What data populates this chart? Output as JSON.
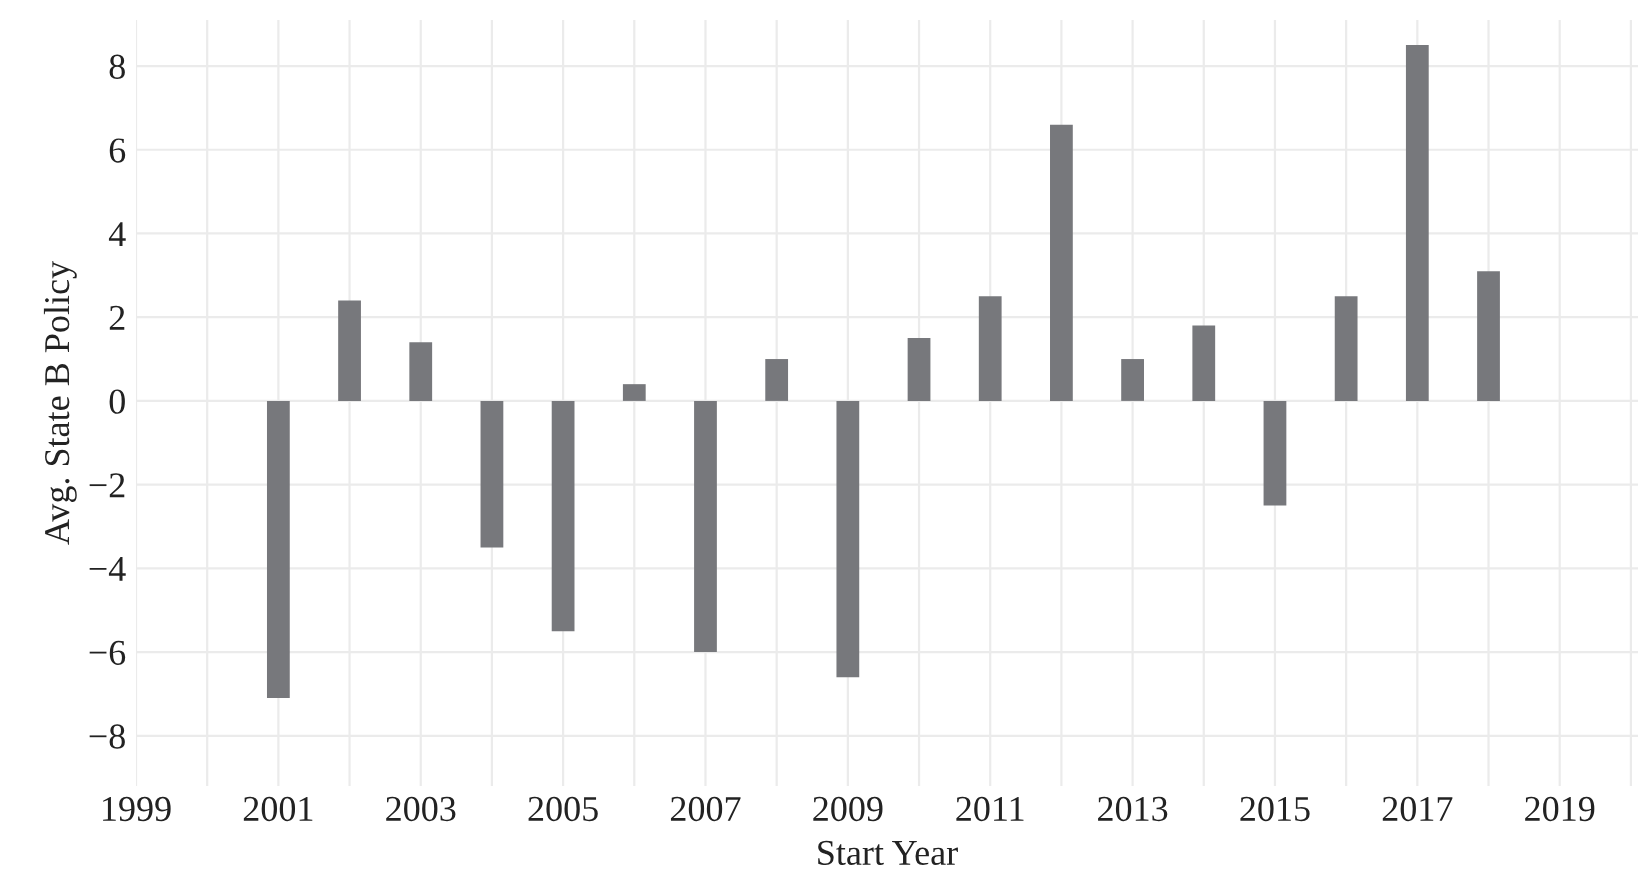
{
  "chart_data": {
    "type": "bar",
    "xlabel": "Start Year",
    "ylabel": "Avg. State B Policy",
    "x": [
      2001,
      2002,
      2003,
      2004,
      2005,
      2006,
      2007,
      2008,
      2009,
      2010,
      2011,
      2012,
      2013,
      2014,
      2015,
      2016,
      2017,
      2018
    ],
    "values": [
      -7.1,
      2.4,
      1.4,
      -3.5,
      -5.5,
      0.4,
      -6.0,
      1.0,
      -6.6,
      1.5,
      2.5,
      6.6,
      1.0,
      1.8,
      -2.5,
      2.5,
      8.5,
      3.1
    ],
    "color": "#77787c",
    "xlim": [
      1999,
      2020.1
    ],
    "xticks": [
      1999,
      {
        "value": 2000,
        "label": null
      },
      2001,
      {
        "value": 2002,
        "label": null
      },
      2003,
      {
        "value": 2004,
        "label": null
      },
      2005,
      {
        "value": 2006,
        "label": null
      },
      2007,
      {
        "value": 2008,
        "label": null
      },
      2009,
      {
        "value": 2010,
        "label": null
      },
      2011,
      {
        "value": 2012,
        "label": null
      },
      2013,
      {
        "value": 2014,
        "label": null
      },
      2015,
      {
        "value": 2016,
        "label": null
      },
      2017,
      {
        "value": 2018,
        "label": null
      },
      2019,
      {
        "value": 2020,
        "label": null
      }
    ],
    "ylim": [
      -9.2,
      9.1
    ],
    "yticks": [
      {
        "value": -8,
        "label": "−8"
      },
      {
        "value": -6,
        "label": "−6"
      },
      {
        "value": -4,
        "label": "−4"
      },
      {
        "value": -2,
        "label": "−2"
      },
      0,
      2,
      4,
      6,
      8
    ],
    "grid": true
  }
}
